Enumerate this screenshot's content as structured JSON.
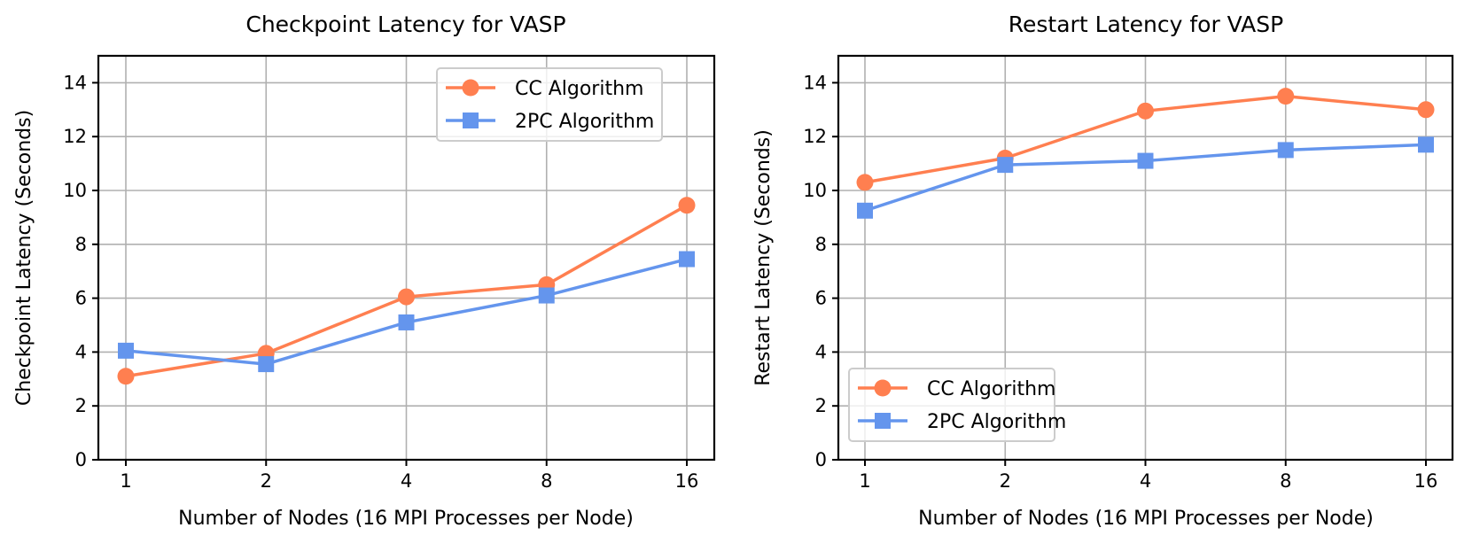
{
  "colors": {
    "cc": "#ff7f50",
    "twopc": "#6495ed",
    "grid": "#b0b0b0",
    "legend_border": "#cccccc"
  },
  "chart_data": [
    {
      "type": "line",
      "title": "Checkpoint Latency for VASP",
      "xlabel": "Number of Nodes (16 MPI Processes per Node)",
      "ylabel": "Checkpoint Latency (Seconds)",
      "categories": [
        "1",
        "2",
        "4",
        "8",
        "16"
      ],
      "x_scale": "categorical",
      "ylim": [
        0,
        15
      ],
      "yticks": [
        0,
        2,
        4,
        6,
        8,
        10,
        12,
        14
      ],
      "grid": true,
      "legend_position": "top-right",
      "series": [
        {
          "name": "CC Algorithm",
          "marker": "circle",
          "color_key": "cc",
          "values": [
            3.1,
            3.95,
            6.05,
            6.5,
            9.45
          ]
        },
        {
          "name": "2PC Algorithm",
          "marker": "square",
          "color_key": "twopc",
          "values": [
            4.05,
            3.55,
            5.1,
            6.1,
            7.45
          ]
        }
      ]
    },
    {
      "type": "line",
      "title": "Restart Latency for VASP",
      "xlabel": "Number of Nodes (16 MPI Processes per Node)",
      "ylabel": "Restart Latency (Seconds)",
      "categories": [
        "1",
        "2",
        "4",
        "8",
        "16"
      ],
      "x_scale": "categorical",
      "ylim": [
        0,
        15
      ],
      "yticks": [
        0,
        2,
        4,
        6,
        8,
        10,
        12,
        14
      ],
      "grid": true,
      "legend_position": "bottom-left",
      "series": [
        {
          "name": "CC Algorithm",
          "marker": "circle",
          "color_key": "cc",
          "values": [
            10.3,
            11.2,
            12.95,
            13.5,
            13.0
          ]
        },
        {
          "name": "2PC Algorithm",
          "marker": "square",
          "color_key": "twopc",
          "values": [
            9.25,
            10.95,
            11.1,
            11.5,
            11.7
          ]
        }
      ]
    }
  ]
}
